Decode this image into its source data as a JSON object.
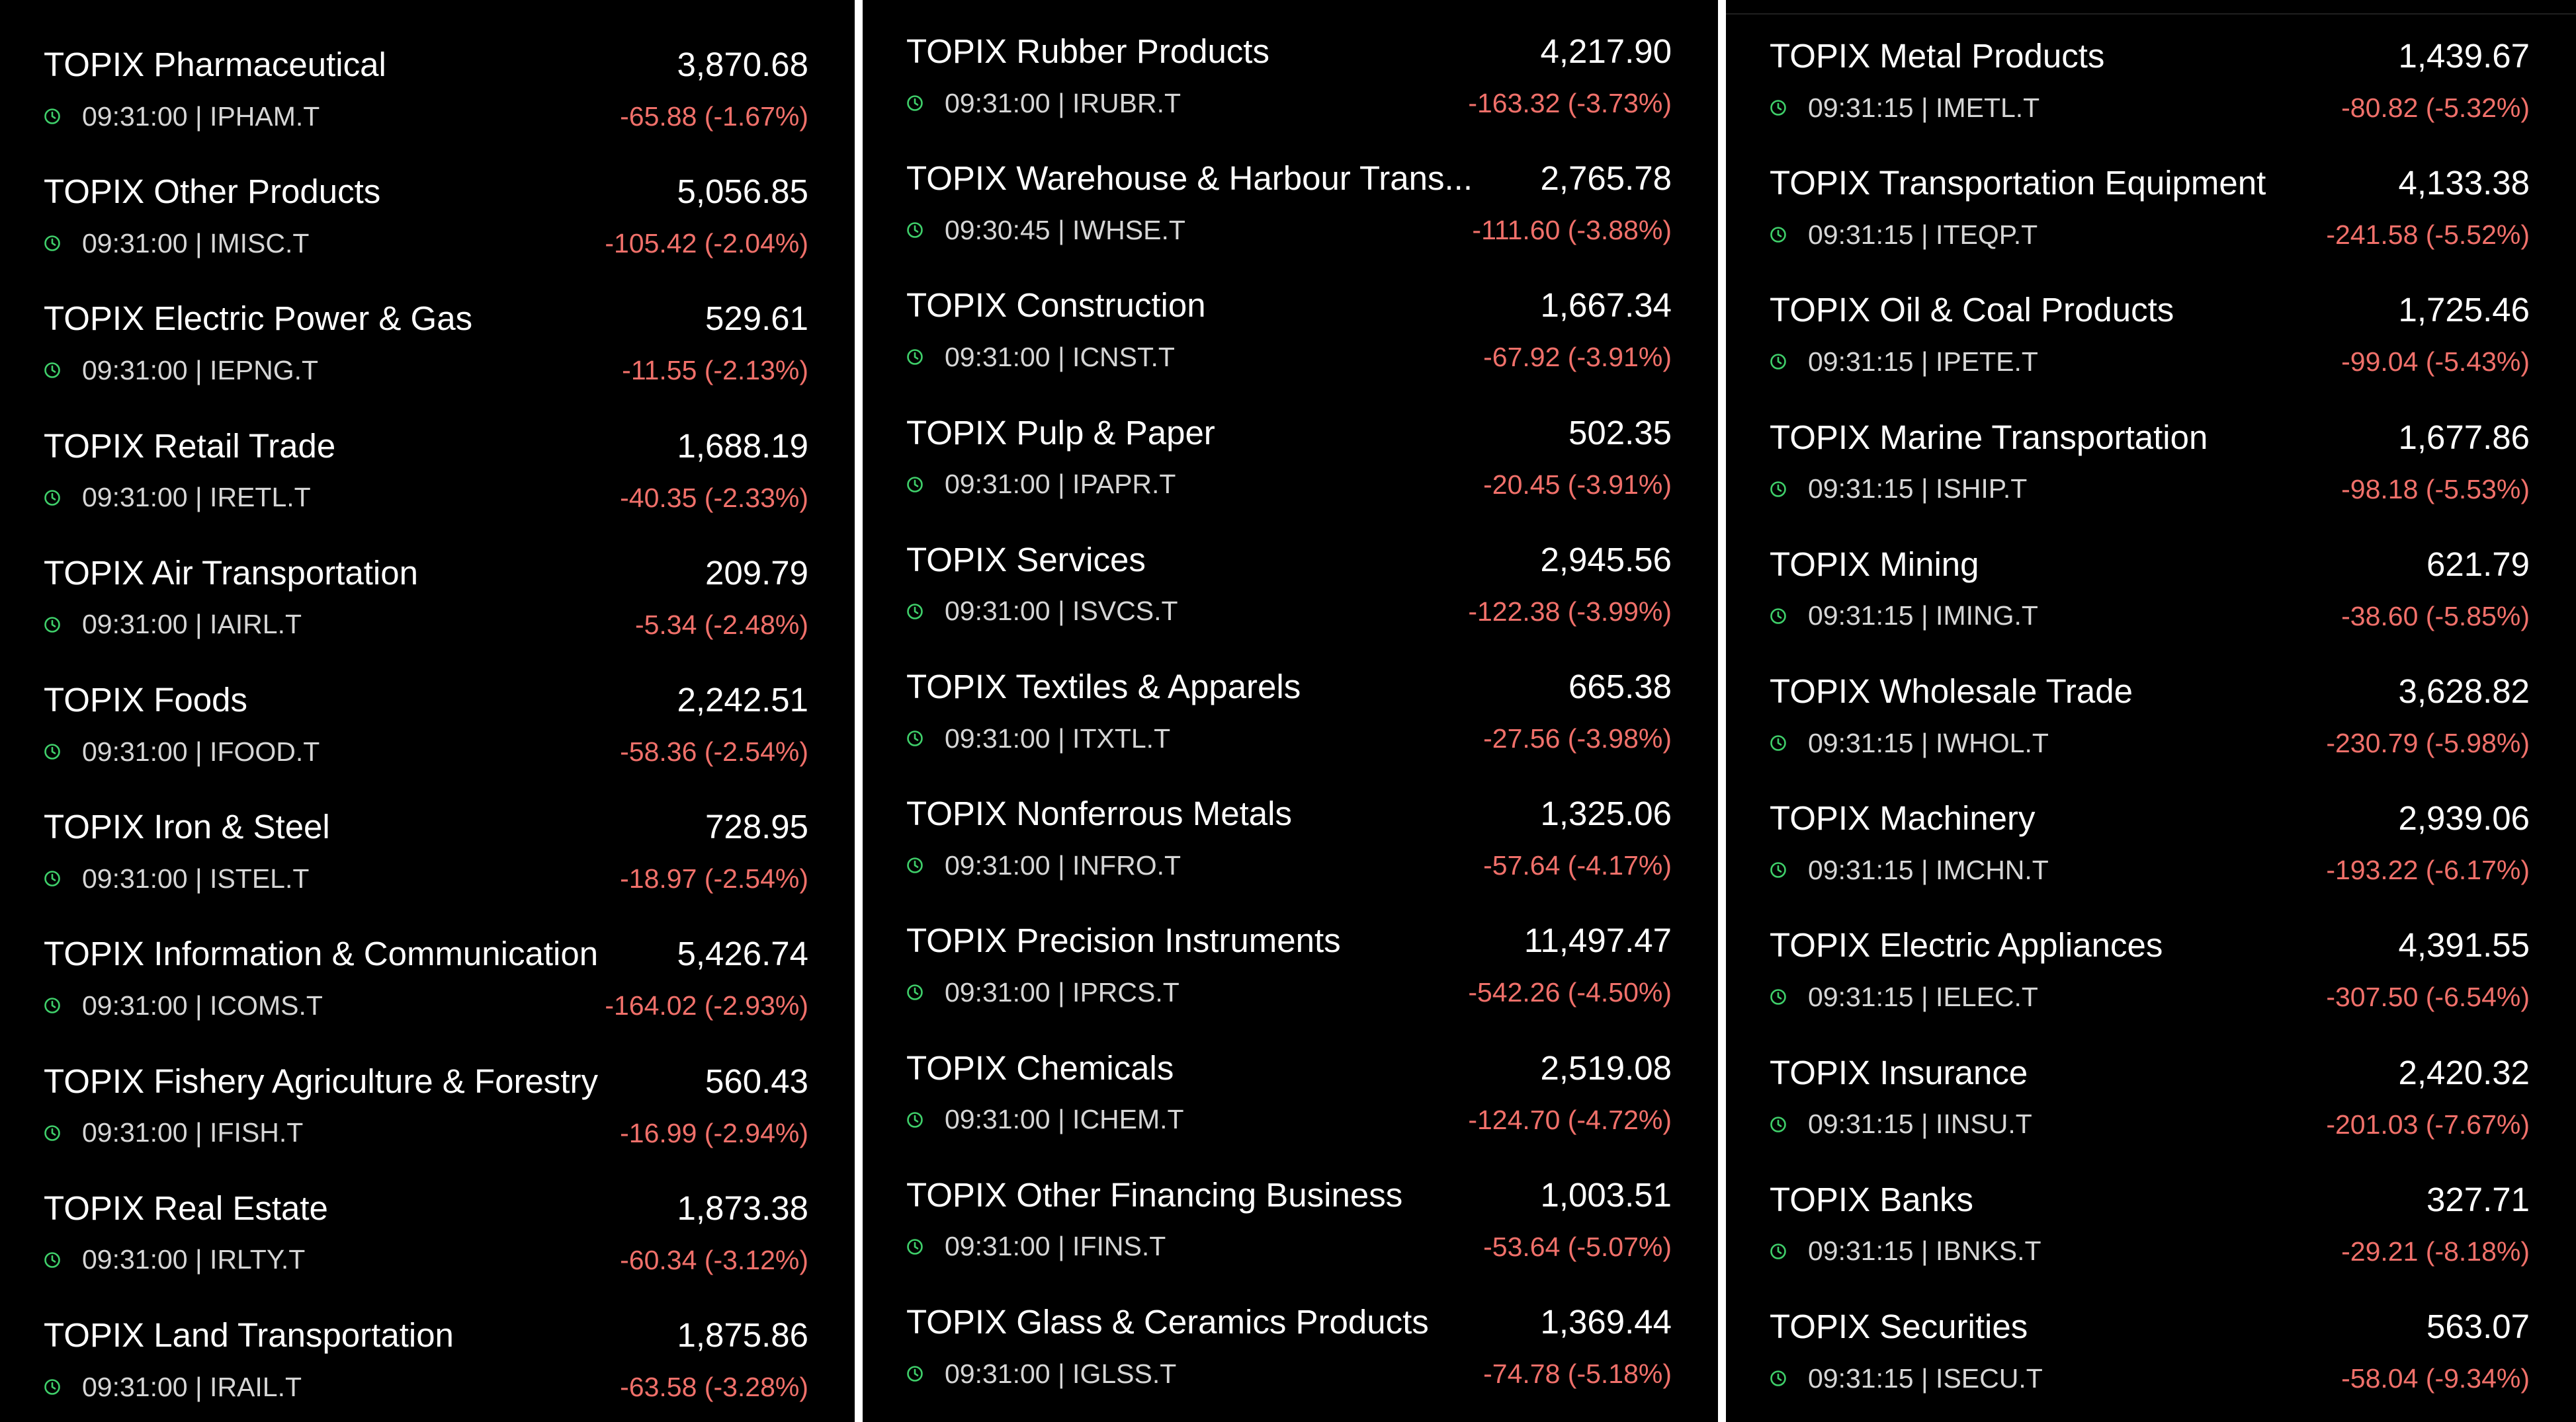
{
  "columns": [
    {
      "rows": [
        {
          "name": "TOPIX Pharmaceutical",
          "price": "3,870.68",
          "time": "09:31:00",
          "ticker": "IPHAM.T",
          "change": "-65.88 (-1.67%)"
        },
        {
          "name": "TOPIX Other Products",
          "price": "5,056.85",
          "time": "09:31:00",
          "ticker": "IMISC.T",
          "change": "-105.42 (-2.04%)"
        },
        {
          "name": "TOPIX Electric Power & Gas",
          "price": "529.61",
          "time": "09:31:00",
          "ticker": "IEPNG.T",
          "change": "-11.55 (-2.13%)"
        },
        {
          "name": "TOPIX Retail Trade",
          "price": "1,688.19",
          "time": "09:31:00",
          "ticker": "IRETL.T",
          "change": "-40.35 (-2.33%)"
        },
        {
          "name": "TOPIX Air Transportation",
          "price": "209.79",
          "time": "09:31:00",
          "ticker": "IAIRL.T",
          "change": "-5.34 (-2.48%)"
        },
        {
          "name": "TOPIX Foods",
          "price": "2,242.51",
          "time": "09:31:00",
          "ticker": "IFOOD.T",
          "change": "-58.36 (-2.54%)"
        },
        {
          "name": "TOPIX Iron & Steel",
          "price": "728.95",
          "time": "09:31:00",
          "ticker": "ISTEL.T",
          "change": "-18.97 (-2.54%)"
        },
        {
          "name": "TOPIX Information & Communication",
          "price": "5,426.74",
          "time": "09:31:00",
          "ticker": "ICOMS.T",
          "change": "-164.02 (-2.93%)"
        },
        {
          "name": "TOPIX Fishery Agriculture & Forestry",
          "price": "560.43",
          "time": "09:31:00",
          "ticker": "IFISH.T",
          "change": "-16.99 (-2.94%)"
        },
        {
          "name": "TOPIX Real Estate",
          "price": "1,873.38",
          "time": "09:31:00",
          "ticker": "IRLTY.T",
          "change": "-60.34 (-3.12%)"
        },
        {
          "name": "TOPIX Land Transportation",
          "price": "1,875.86",
          "time": "09:31:00",
          "ticker": "IRAIL.T",
          "change": "-63.58 (-3.28%)"
        }
      ]
    },
    {
      "rows": [
        {
          "name": "TOPIX Rubber Products",
          "price": "4,217.90",
          "time": "09:31:00",
          "ticker": "IRUBR.T",
          "change": "-163.32 (-3.73%)"
        },
        {
          "name": "TOPIX Warehouse & Harbour Trans...",
          "price": "2,765.78",
          "time": "09:30:45",
          "ticker": "IWHSE.T",
          "change": "-111.60 (-3.88%)"
        },
        {
          "name": "TOPIX Construction",
          "price": "1,667.34",
          "time": "09:31:00",
          "ticker": "ICNST.T",
          "change": "-67.92 (-3.91%)"
        },
        {
          "name": "TOPIX Pulp & Paper",
          "price": "502.35",
          "time": "09:31:00",
          "ticker": "IPAPR.T",
          "change": "-20.45 (-3.91%)"
        },
        {
          "name": "TOPIX Services",
          "price": "2,945.56",
          "time": "09:31:00",
          "ticker": "ISVCS.T",
          "change": "-122.38 (-3.99%)"
        },
        {
          "name": "TOPIX Textiles & Apparels",
          "price": "665.38",
          "time": "09:31:00",
          "ticker": "ITXTL.T",
          "change": "-27.56 (-3.98%)"
        },
        {
          "name": "TOPIX Nonferrous Metals",
          "price": "1,325.06",
          "time": "09:31:00",
          "ticker": "INFRO.T",
          "change": "-57.64 (-4.17%)"
        },
        {
          "name": "TOPIX Precision Instruments",
          "price": "11,497.47",
          "time": "09:31:00",
          "ticker": "IPRCS.T",
          "change": "-542.26 (-4.50%)"
        },
        {
          "name": "TOPIX Chemicals",
          "price": "2,519.08",
          "time": "09:31:00",
          "ticker": "ICHEM.T",
          "change": "-124.70 (-4.72%)"
        },
        {
          "name": "TOPIX Other Financing Business",
          "price": "1,003.51",
          "time": "09:31:00",
          "ticker": "IFINS.T",
          "change": "-53.64 (-5.07%)"
        },
        {
          "name": "TOPIX Glass & Ceramics Products",
          "price": "1,369.44",
          "time": "09:31:00",
          "ticker": "IGLSS.T",
          "change": "-74.78 (-5.18%)"
        }
      ]
    },
    {
      "rows": [
        {
          "name": "TOPIX Metal Products",
          "price": "1,439.67",
          "time": "09:31:15",
          "ticker": "IMETL.T",
          "change": "-80.82 (-5.32%)"
        },
        {
          "name": "TOPIX Transportation Equipment",
          "price": "4,133.38",
          "time": "09:31:15",
          "ticker": "ITEQP.T",
          "change": "-241.58 (-5.52%)"
        },
        {
          "name": "TOPIX Oil & Coal Products",
          "price": "1,725.46",
          "time": "09:31:15",
          "ticker": "IPETE.T",
          "change": "-99.04 (-5.43%)"
        },
        {
          "name": "TOPIX Marine Transportation",
          "price": "1,677.86",
          "time": "09:31:15",
          "ticker": "ISHIP.T",
          "change": "-98.18 (-5.53%)"
        },
        {
          "name": "TOPIX Mining",
          "price": "621.79",
          "time": "09:31:15",
          "ticker": "IMING.T",
          "change": "-38.60 (-5.85%)"
        },
        {
          "name": "TOPIX Wholesale Trade",
          "price": "3,628.82",
          "time": "09:31:15",
          "ticker": "IWHOL.T",
          "change": "-230.79 (-5.98%)"
        },
        {
          "name": "TOPIX Machinery",
          "price": "2,939.06",
          "time": "09:31:15",
          "ticker": "IMCHN.T",
          "change": "-193.22 (-6.17%)"
        },
        {
          "name": "TOPIX Electric Appliances",
          "price": "4,391.55",
          "time": "09:31:15",
          "ticker": "IELEC.T",
          "change": "-307.50 (-6.54%)"
        },
        {
          "name": "TOPIX Insurance",
          "price": "2,420.32",
          "time": "09:31:15",
          "ticker": "IINSU.T",
          "change": "-201.03 (-7.67%)"
        },
        {
          "name": "TOPIX Banks",
          "price": "327.71",
          "time": "09:31:15",
          "ticker": "IBNKS.T",
          "change": "-29.21 (-8.18%)"
        },
        {
          "name": "TOPIX Securities",
          "price": "563.07",
          "time": "09:31:15",
          "ticker": "ISECU.T",
          "change": "-58.04 (-9.34%)"
        }
      ]
    }
  ],
  "icons": {
    "time": "clock-icon"
  },
  "colors": {
    "background": "#000000",
    "text_primary": "#ffffff",
    "text_secondary": "#d6d6d6",
    "negative": "#f0706a",
    "clock": "#3fcf6a"
  }
}
